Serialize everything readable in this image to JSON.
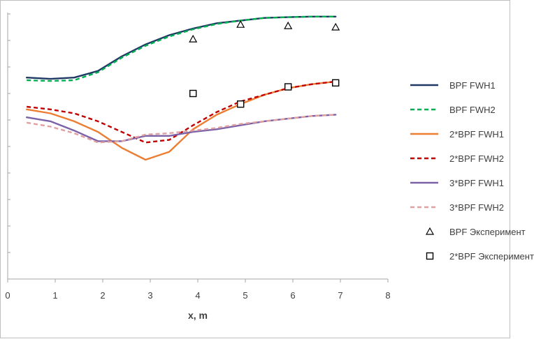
{
  "chart_data": {
    "type": "line",
    "xlabel": "x, m",
    "ylabel": "",
    "xlim": [
      0,
      8
    ],
    "ylim": [
      0,
      10
    ],
    "xticks": [
      "0",
      "1",
      "2",
      "3",
      "4",
      "5",
      "6",
      "7",
      "8"
    ],
    "grid": false,
    "legend_position": "right",
    "series": [
      {
        "name": "BPF FWH1",
        "style": "solid",
        "color": "#1f3864",
        "marker": "none",
        "x": [
          0.4,
          0.9,
          1.4,
          1.9,
          2.4,
          2.9,
          3.4,
          3.9,
          4.4,
          4.9,
          5.4,
          5.9,
          6.4,
          6.9
        ],
        "y": [
          7.6,
          7.55,
          7.6,
          7.85,
          8.4,
          8.85,
          9.2,
          9.45,
          9.65,
          9.75,
          9.85,
          9.88,
          9.9,
          9.9
        ]
      },
      {
        "name": "BPF FWH2",
        "style": "dashed",
        "color": "#00b050",
        "marker": "none",
        "x": [
          0.4,
          0.9,
          1.4,
          1.9,
          2.4,
          2.9,
          3.4,
          3.9,
          4.4,
          4.9,
          5.4,
          5.9,
          6.4,
          6.9
        ],
        "y": [
          7.5,
          7.47,
          7.5,
          7.8,
          8.35,
          8.8,
          9.15,
          9.42,
          9.62,
          9.75,
          9.85,
          9.88,
          9.9,
          9.9
        ]
      },
      {
        "name": "2*BPF FWH1",
        "style": "solid",
        "color": "#ed7d31",
        "marker": "none",
        "x": [
          0.4,
          0.9,
          1.4,
          1.9,
          2.4,
          2.9,
          3.4,
          3.9,
          4.4,
          4.9,
          5.4,
          5.9,
          6.4,
          6.9
        ],
        "y": [
          6.4,
          6.25,
          5.95,
          5.55,
          4.95,
          4.5,
          4.8,
          5.65,
          6.2,
          6.6,
          6.95,
          7.2,
          7.35,
          7.45
        ]
      },
      {
        "name": "2*BPF FWH2",
        "style": "dashed",
        "color": "#c00000",
        "marker": "none",
        "x": [
          0.4,
          0.9,
          1.4,
          1.9,
          2.4,
          2.9,
          3.4,
          3.9,
          4.4,
          4.9,
          5.4,
          5.9,
          6.4,
          6.9
        ],
        "y": [
          6.5,
          6.4,
          6.25,
          5.95,
          5.55,
          5.15,
          5.25,
          5.8,
          6.3,
          6.7,
          6.95,
          7.2,
          7.35,
          7.45
        ]
      },
      {
        "name": "3*BPF FWH1",
        "style": "solid",
        "color": "#7b62a8",
        "marker": "none",
        "x": [
          0.4,
          0.9,
          1.4,
          1.9,
          2.4,
          2.9,
          3.4,
          3.9,
          4.4,
          4.9,
          5.4,
          5.9,
          6.4,
          6.9
        ],
        "y": [
          6.1,
          5.95,
          5.6,
          5.2,
          5.2,
          5.4,
          5.4,
          5.55,
          5.65,
          5.8,
          5.95,
          6.05,
          6.15,
          6.2
        ]
      },
      {
        "name": "3*BPF FWH2",
        "style": "dashed",
        "color": "#e0a0a0",
        "marker": "none",
        "x": [
          0.4,
          0.9,
          1.4,
          1.9,
          2.4,
          2.9,
          3.4,
          3.9,
          4.4,
          4.9,
          5.4,
          5.9,
          6.4,
          6.9
        ],
        "y": [
          5.9,
          5.75,
          5.5,
          5.15,
          5.2,
          5.45,
          5.5,
          5.6,
          5.7,
          5.85,
          5.95,
          6.05,
          6.15,
          6.2
        ]
      },
      {
        "name": "BPF Эксперимент",
        "style": "none",
        "color": "#000000",
        "marker": "triangle",
        "x": [
          3.9,
          4.9,
          5.9,
          6.9
        ],
        "y": [
          9.05,
          9.6,
          9.55,
          9.5
        ]
      },
      {
        "name": "2*BPF Эксперимент",
        "style": "none",
        "color": "#000000",
        "marker": "square",
        "x": [
          3.9,
          4.9,
          5.9,
          6.9
        ],
        "y": [
          7.0,
          6.6,
          7.25,
          7.4
        ]
      }
    ]
  }
}
